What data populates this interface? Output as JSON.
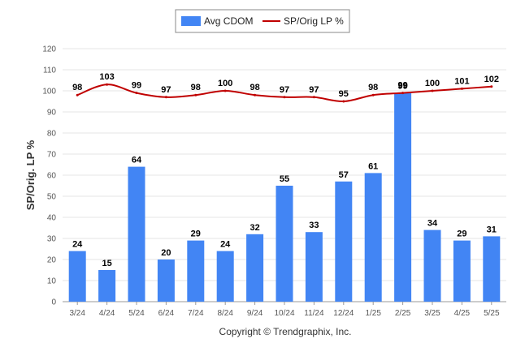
{
  "chart_data": {
    "type": "bar",
    "categories": [
      "3/24",
      "4/24",
      "5/24",
      "6/24",
      "7/24",
      "8/24",
      "9/24",
      "10/24",
      "11/24",
      "12/24",
      "1/25",
      "2/25",
      "3/25",
      "4/25",
      "5/25"
    ],
    "series": [
      {
        "name": "Avg CDOM",
        "type": "bar",
        "color": "#4285f4",
        "values": [
          24,
          15,
          64,
          20,
          29,
          24,
          32,
          55,
          33,
          57,
          61,
          99,
          34,
          29,
          31
        ]
      },
      {
        "name": "SP/Orig LP %",
        "type": "line",
        "color": "#c00000",
        "values": [
          98,
          103,
          99,
          97,
          98,
          100,
          98,
          97,
          97,
          95,
          98,
          99,
          100,
          101,
          102
        ]
      }
    ],
    "ylabel": "SP/Orig. LP %",
    "ylim": [
      0,
      120
    ],
    "yticks": [
      0,
      10,
      20,
      30,
      40,
      50,
      60,
      70,
      80,
      90,
      100,
      110,
      120
    ],
    "grid": true,
    "legend_position": "top-center"
  },
  "footer": {
    "copyright": "Copyright © Trendgraphix, Inc."
  }
}
